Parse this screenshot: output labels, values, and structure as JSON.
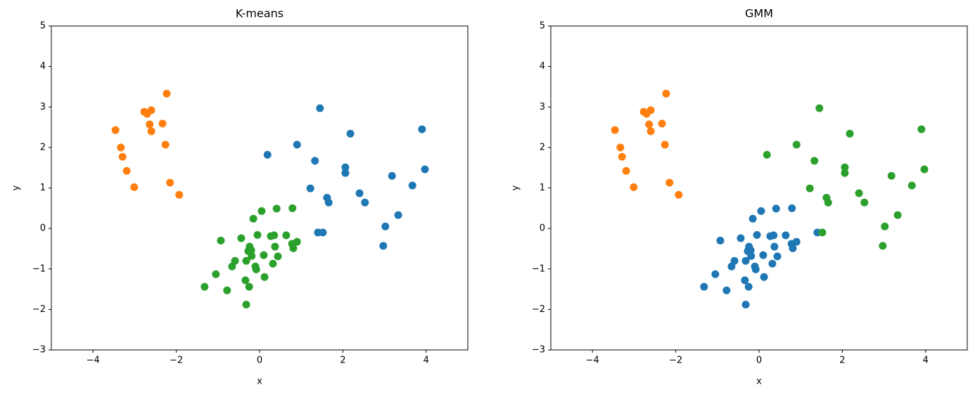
{
  "chart_data": [
    {
      "type": "scatter",
      "title": "K-means",
      "x_label": "x",
      "y_label": "y",
      "xlim": [
        -5,
        5
      ],
      "ylim": [
        -3,
        5
      ],
      "xticks": [
        {
          "value": -4,
          "label": "−4"
        },
        {
          "value": -2,
          "label": "−2"
        },
        0,
        2,
        4
      ],
      "yticks": [
        {
          "value": -3,
          "label": "−3"
        },
        {
          "value": -2,
          "label": "−2"
        },
        {
          "value": -1,
          "label": "−1"
        },
        0,
        1,
        2,
        3,
        4,
        5
      ],
      "series": [
        {
          "color": "#1f77b4",
          "x": [
            1.45,
            2.18,
            3.9,
            0.19,
            0.9,
            1.33,
            2.06,
            2.06,
            3.18,
            3.97,
            1.22,
            3.67,
            1.62,
            1.66,
            2.4,
            2.53,
            3.02,
            3.33,
            2.97,
            1.4,
            1.52
          ],
          "y": [
            2.97,
            2.34,
            2.45,
            1.82,
            2.07,
            1.67,
            1.51,
            1.37,
            1.3,
            1.46,
            0.99,
            1.06,
            0.76,
            0.64,
            0.87,
            0.64,
            0.05,
            0.33,
            -0.43,
            -0.1,
            -0.1
          ]
        },
        {
          "color": "#ff7f0e",
          "x": [
            -3.46,
            -3.33,
            -3.29,
            -3.19,
            -3.01,
            -2.77,
            -2.7,
            -2.64,
            -2.6,
            -2.6,
            -2.33,
            -2.26,
            -2.23,
            -2.15,
            -1.93
          ],
          "y": [
            2.43,
            2.0,
            1.77,
            1.42,
            1.02,
            2.88,
            2.83,
            2.57,
            2.92,
            2.4,
            2.59,
            2.07,
            3.33,
            1.13,
            0.83
          ]
        },
        {
          "color": "#2ca02c",
          "x": [
            -0.15,
            0.05,
            0.41,
            0.79,
            -0.44,
            -0.93,
            -0.05,
            0.27,
            0.35,
            0.64,
            0.9,
            0.78,
            0.81,
            -0.24,
            -0.27,
            -0.2,
            -0.19,
            0.37,
            0.1,
            0.44,
            -0.32,
            -0.59,
            -0.66,
            -0.1,
            -0.08,
            0.32,
            -1.05,
            0.12,
            -0.34,
            -1.32,
            -0.25,
            -0.78,
            -0.32
          ],
          "y": [
            0.24,
            0.43,
            0.49,
            0.5,
            -0.24,
            -0.3,
            -0.16,
            -0.19,
            -0.17,
            -0.17,
            -0.33,
            -0.38,
            -0.49,
            -0.45,
            -0.56,
            -0.54,
            -0.68,
            -0.45,
            -0.66,
            -0.69,
            -0.8,
            -0.8,
            -0.94,
            -0.94,
            -1.01,
            -0.87,
            -1.13,
            -1.2,
            -1.28,
            -1.44,
            -1.44,
            -1.53,
            -1.88
          ]
        }
      ]
    },
    {
      "type": "scatter",
      "title": "GMM",
      "x_label": "x",
      "y_label": "y",
      "xlim": [
        -5,
        5
      ],
      "ylim": [
        -3,
        5
      ],
      "xticks": [
        {
          "value": -4,
          "label": "−4"
        },
        {
          "value": -2,
          "label": "−2"
        },
        0,
        2,
        4
      ],
      "yticks": [
        {
          "value": -3,
          "label": "−3"
        },
        {
          "value": -2,
          "label": "−2"
        },
        {
          "value": -1,
          "label": "−1"
        },
        0,
        1,
        2,
        3,
        4,
        5
      ],
      "series": [
        {
          "color": "#1f77b4",
          "x": [
            -0.15,
            0.05,
            0.41,
            0.79,
            -0.44,
            -0.93,
            -0.05,
            0.27,
            0.35,
            0.64,
            0.9,
            0.78,
            0.81,
            -0.24,
            -0.27,
            -0.2,
            -0.19,
            0.37,
            0.1,
            0.44,
            -0.32,
            -0.59,
            -0.66,
            -0.1,
            -0.08,
            0.32,
            -1.05,
            0.12,
            -0.34,
            -1.32,
            -0.25,
            -0.78,
            -0.32,
            1.4
          ],
          "y": [
            0.24,
            0.43,
            0.49,
            0.5,
            -0.24,
            -0.3,
            -0.16,
            -0.19,
            -0.17,
            -0.17,
            -0.33,
            -0.38,
            -0.49,
            -0.45,
            -0.56,
            -0.54,
            -0.68,
            -0.45,
            -0.66,
            -0.69,
            -0.8,
            -0.8,
            -0.94,
            -0.94,
            -1.01,
            -0.87,
            -1.13,
            -1.2,
            -1.28,
            -1.44,
            -1.44,
            -1.53,
            -1.88,
            -0.1
          ]
        },
        {
          "color": "#ff7f0e",
          "x": [
            -3.46,
            -3.33,
            -3.29,
            -3.19,
            -3.01,
            -2.77,
            -2.7,
            -2.64,
            -2.6,
            -2.6,
            -2.33,
            -2.26,
            -2.23,
            -2.15,
            -1.93
          ],
          "y": [
            2.43,
            2.0,
            1.77,
            1.42,
            1.02,
            2.88,
            2.83,
            2.57,
            2.92,
            2.4,
            2.59,
            2.07,
            3.33,
            1.13,
            0.83
          ]
        },
        {
          "color": "#2ca02c",
          "x": [
            1.45,
            2.18,
            3.9,
            0.19,
            0.9,
            1.33,
            2.06,
            2.06,
            3.18,
            3.97,
            1.22,
            3.67,
            1.62,
            1.66,
            2.4,
            2.53,
            3.02,
            3.33,
            2.97,
            1.52
          ],
          "y": [
            2.97,
            2.34,
            2.45,
            1.82,
            2.07,
            1.67,
            1.51,
            1.37,
            1.3,
            1.46,
            0.99,
            1.06,
            0.76,
            0.64,
            0.87,
            0.64,
            0.05,
            0.33,
            -0.43,
            -0.1
          ]
        }
      ]
    }
  ]
}
